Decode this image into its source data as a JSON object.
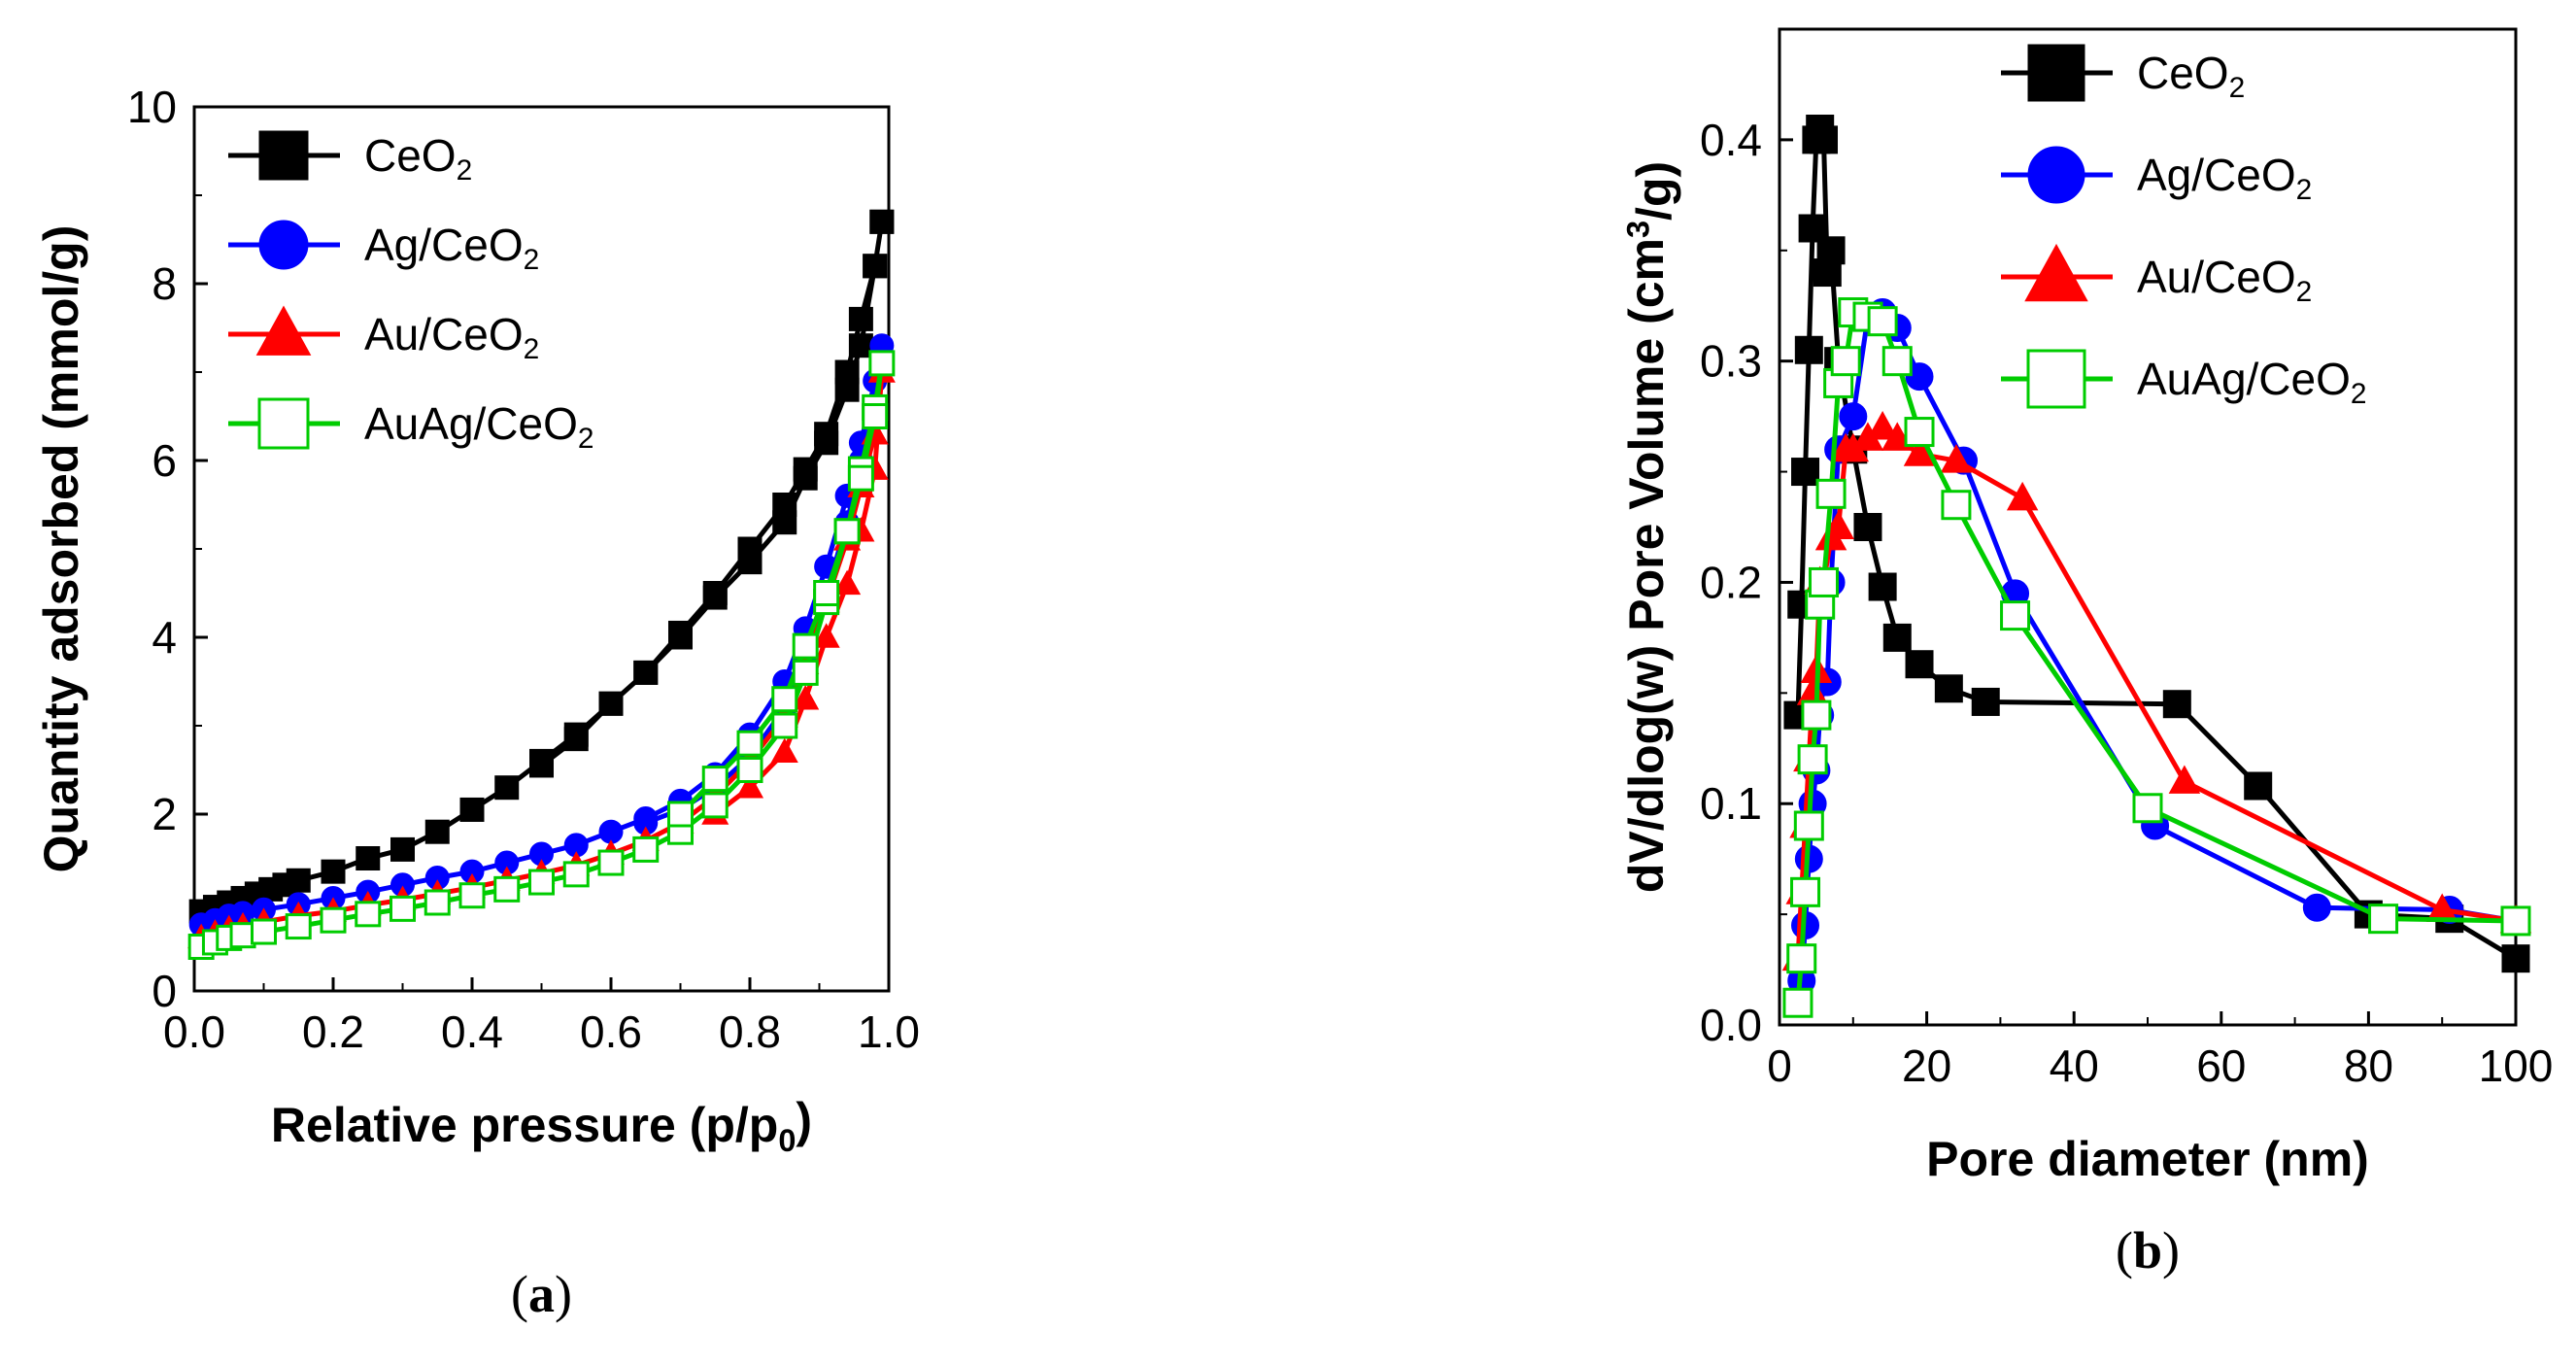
{
  "chart_data": [
    {
      "type": "line",
      "panel_label": "(a)",
      "title": "",
      "xlabel": "Relative pressure (p/p0)",
      "ylabel": "Quantity adsorbed (mmol/g)",
      "xlim": [
        0.0,
        1.0
      ],
      "ylim": [
        0,
        10
      ],
      "xticks": [
        0.0,
        0.2,
        0.4,
        0.6,
        0.8,
        1.0
      ],
      "yticks": [
        0,
        2,
        4,
        6,
        8,
        10
      ],
      "xtick_labels": [
        "0.0",
        "0.2",
        "0.4",
        "0.6",
        "0.8",
        "1.0"
      ],
      "ytick_labels": [
        "0",
        "2",
        "4",
        "6",
        "8",
        "10"
      ],
      "grid": false,
      "legend_position": "top-left",
      "series": [
        {
          "name": "CeO2",
          "color": "#000000",
          "marker": "square-filled",
          "x": [
            0.01,
            0.03,
            0.05,
            0.07,
            0.09,
            0.11,
            0.13,
            0.15,
            0.2,
            0.25,
            0.3,
            0.35,
            0.4,
            0.45,
            0.5,
            0.55,
            0.6,
            0.65,
            0.7,
            0.75,
            0.8,
            0.85,
            0.88,
            0.91,
            0.94,
            0.96,
            0.98,
            0.99,
            0.99,
            0.98,
            0.96,
            0.94,
            0.91,
            0.88,
            0.85,
            0.8,
            0.75,
            0.7,
            0.65,
            0.6,
            0.55,
            0.5
          ],
          "y": [
            0.9,
            0.95,
            1.0,
            1.05,
            1.1,
            1.15,
            1.2,
            1.25,
            1.35,
            1.5,
            1.6,
            1.8,
            2.05,
            2.3,
            2.6,
            2.9,
            3.25,
            3.6,
            4.05,
            4.5,
            5.0,
            5.5,
            5.9,
            6.3,
            7.0,
            7.6,
            8.2,
            8.7,
            8.7,
            8.2,
            7.3,
            6.8,
            6.2,
            5.8,
            5.3,
            4.85,
            4.45,
            4.0,
            3.6,
            3.25,
            2.85,
            2.55
          ]
        },
        {
          "name": "Ag/CeO2",
          "color": "#0000ff",
          "marker": "circle-filled",
          "x": [
            0.01,
            0.03,
            0.05,
            0.07,
            0.1,
            0.15,
            0.2,
            0.25,
            0.3,
            0.35,
            0.4,
            0.45,
            0.5,
            0.55,
            0.6,
            0.65,
            0.7,
            0.75,
            0.8,
            0.85,
            0.88,
            0.91,
            0.94,
            0.96,
            0.98,
            0.99,
            0.98,
            0.96,
            0.94,
            0.91,
            0.88,
            0.85,
            0.8,
            0.75,
            0.7,
            0.65
          ],
          "y": [
            0.75,
            0.8,
            0.85,
            0.88,
            0.92,
            0.98,
            1.05,
            1.12,
            1.2,
            1.28,
            1.35,
            1.45,
            1.55,
            1.65,
            1.8,
            1.95,
            2.15,
            2.45,
            2.9,
            3.5,
            4.1,
            4.8,
            5.6,
            6.2,
            6.9,
            7.3,
            6.6,
            6.0,
            5.3,
            4.5,
            3.8,
            3.2,
            2.65,
            2.3,
            2.05,
            1.9
          ]
        },
        {
          "name": "Au/CeO2",
          "color": "#ff0000",
          "marker": "triangle-filled",
          "x": [
            0.01,
            0.03,
            0.05,
            0.07,
            0.1,
            0.15,
            0.2,
            0.25,
            0.3,
            0.35,
            0.4,
            0.45,
            0.5,
            0.55,
            0.6,
            0.65,
            0.7,
            0.75,
            0.8,
            0.85,
            0.88,
            0.91,
            0.94,
            0.96,
            0.98,
            0.99,
            0.98,
            0.96,
            0.94,
            0.91,
            0.88,
            0.85,
            0.8,
            0.75
          ],
          "y": [
            0.6,
            0.65,
            0.7,
            0.73,
            0.78,
            0.85,
            0.9,
            0.97,
            1.03,
            1.1,
            1.17,
            1.25,
            1.33,
            1.42,
            1.55,
            1.7,
            1.9,
            2.2,
            2.6,
            3.1,
            3.7,
            4.4,
            5.1,
            5.7,
            6.3,
            7.0,
            5.9,
            5.2,
            4.6,
            4.0,
            3.3,
            2.7,
            2.3,
            2.0
          ]
        },
        {
          "name": "AuAg/CeO2",
          "color": "#00cc00",
          "marker": "square-open",
          "x": [
            0.01,
            0.03,
            0.05,
            0.07,
            0.1,
            0.15,
            0.2,
            0.25,
            0.3,
            0.35,
            0.4,
            0.45,
            0.5,
            0.55,
            0.6,
            0.65,
            0.7,
            0.75,
            0.8,
            0.85,
            0.88,
            0.91,
            0.94,
            0.96,
            0.98,
            0.99,
            0.98,
            0.96,
            0.94,
            0.91,
            0.88,
            0.85,
            0.8,
            0.75,
            0.7
          ],
          "y": [
            0.5,
            0.55,
            0.6,
            0.63,
            0.67,
            0.73,
            0.8,
            0.87,
            0.93,
            1.0,
            1.08,
            1.15,
            1.23,
            1.32,
            1.45,
            1.6,
            1.8,
            2.1,
            2.5,
            3.0,
            3.6,
            4.4,
            5.2,
            5.9,
            6.6,
            7.1,
            6.5,
            5.8,
            5.2,
            4.5,
            3.9,
            3.3,
            2.8,
            2.4,
            2.0
          ]
        }
      ]
    },
    {
      "type": "line",
      "panel_label": "(b)",
      "title": "",
      "xlabel": "Pore diameter (nm)",
      "ylabel": "dV/dlog(w) Pore Volume (cm3/g)",
      "xlim": [
        0,
        100
      ],
      "ylim": [
        0.0,
        0.45
      ],
      "xticks": [
        0,
        20,
        40,
        60,
        80,
        100
      ],
      "yticks": [
        0.0,
        0.1,
        0.2,
        0.3,
        0.4
      ],
      "xtick_labels": [
        "0",
        "20",
        "40",
        "60",
        "80",
        "100"
      ],
      "ytick_labels": [
        "0.0",
        "0.1",
        "0.2",
        "0.3",
        "0.4"
      ],
      "grid": false,
      "legend_position": "top-right",
      "series": [
        {
          "name": "CeO2",
          "color": "#000000",
          "marker": "square-filled",
          "x": [
            2.5,
            3.0,
            3.5,
            4.0,
            4.5,
            5.0,
            5.5,
            6.0,
            6.5,
            7.0,
            8.0,
            10.0,
            12.0,
            14.0,
            16.0,
            19.0,
            23.0,
            28.0,
            54.0,
            65.0,
            80.0,
            91.0,
            100.0
          ],
          "y": [
            0.14,
            0.19,
            0.25,
            0.305,
            0.36,
            0.4,
            0.405,
            0.4,
            0.34,
            0.35,
            0.3,
            0.26,
            0.225,
            0.198,
            0.175,
            0.163,
            0.152,
            0.146,
            0.145,
            0.108,
            0.05,
            0.048,
            0.03
          ]
        },
        {
          "name": "Ag/CeO2",
          "color": "#0000ff",
          "marker": "circle-filled",
          "x": [
            2.5,
            3.0,
            3.5,
            4.0,
            4.5,
            5.0,
            5.5,
            6.0,
            6.5,
            7.0,
            8.0,
            10.0,
            12.0,
            14.0,
            16.0,
            19.0,
            25.0,
            32.0,
            51.0,
            73.0,
            91.0,
            100.0
          ],
          "y": [
            0.01,
            0.02,
            0.045,
            0.075,
            0.1,
            0.115,
            0.14,
            0.155,
            0.155,
            0.2,
            0.26,
            0.275,
            0.32,
            0.322,
            0.315,
            0.293,
            0.255,
            0.195,
            0.09,
            0.053,
            0.052,
            0.047
          ]
        },
        {
          "name": "Au/CeO2",
          "color": "#ff0000",
          "marker": "triangle-filled",
          "x": [
            2.5,
            3.0,
            3.5,
            4.0,
            4.5,
            5.0,
            5.5,
            6.0,
            7.0,
            8.0,
            9.0,
            10.0,
            12.0,
            14.0,
            16.0,
            19.0,
            24.0,
            33.0,
            55.0,
            90.0,
            100.0
          ],
          "y": [
            0.03,
            0.06,
            0.09,
            0.12,
            0.15,
            0.16,
            0.2,
            0.2,
            0.22,
            0.225,
            0.26,
            0.26,
            0.265,
            0.27,
            0.265,
            0.258,
            0.255,
            0.238,
            0.11,
            0.052,
            0.047
          ]
        },
        {
          "name": "AuAg/CeO2",
          "color": "#00cc00",
          "marker": "square-open",
          "x": [
            2.5,
            3.0,
            3.5,
            4.0,
            4.5,
            5.0,
            5.5,
            6.0,
            7.0,
            8.0,
            9.0,
            10.0,
            12.0,
            14.0,
            16.0,
            19.0,
            24.0,
            32.0,
            50.0,
            82.0,
            100.0
          ],
          "y": [
            0.01,
            0.03,
            0.06,
            0.09,
            0.12,
            0.14,
            0.19,
            0.2,
            0.24,
            0.29,
            0.3,
            0.322,
            0.32,
            0.318,
            0.3,
            0.268,
            0.235,
            0.185,
            0.098,
            0.048,
            0.047
          ]
        }
      ]
    }
  ]
}
